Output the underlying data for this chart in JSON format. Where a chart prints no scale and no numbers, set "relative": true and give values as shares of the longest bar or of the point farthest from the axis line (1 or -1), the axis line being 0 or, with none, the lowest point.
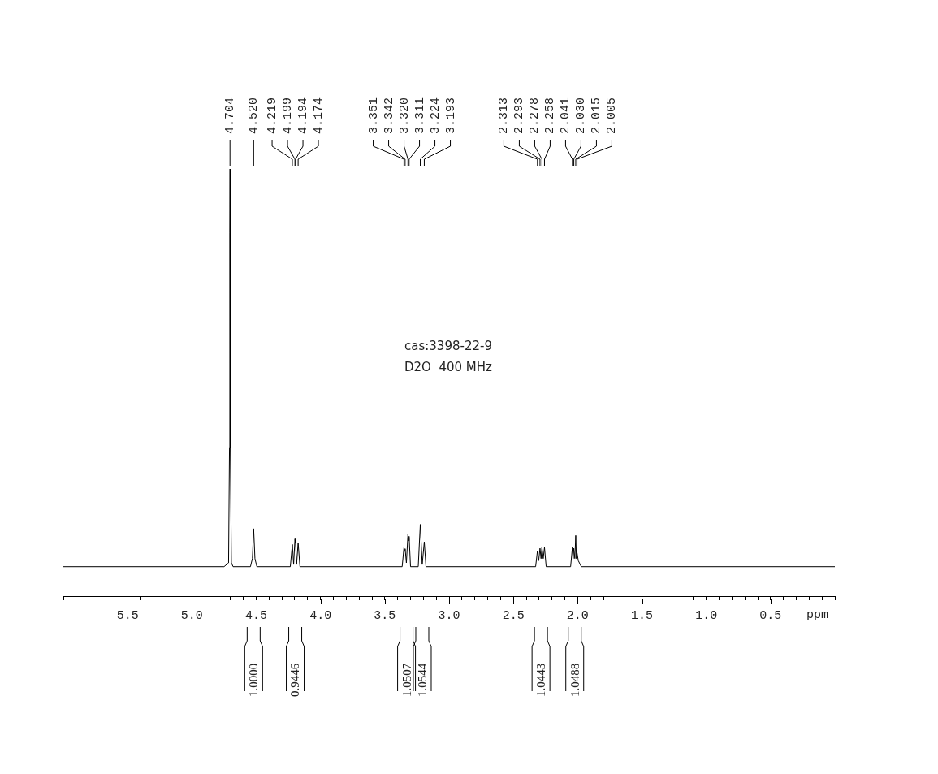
{
  "chart_data": {
    "type": "line",
    "relative": true,
    "marker": "none",
    "color": "#000000",
    "xlabel": "ppm",
    "xlim": [
      6,
      0
    ],
    "xticks": [
      {
        "value": 6,
        "label": null
      },
      {
        "value": 5.9,
        "label": null
      },
      {
        "value": 5.8,
        "label": null
      },
      {
        "value": 5.7,
        "label": null
      },
      {
        "value": 5.6,
        "label": null
      },
      5.5,
      {
        "value": 5.4,
        "label": null
      },
      {
        "value": 5.3,
        "label": null
      },
      {
        "value": 5.2,
        "label": null
      },
      {
        "value": 5.1,
        "label": null
      },
      {
        "value": 5,
        "label": "5.0"
      },
      {
        "value": 4.9,
        "label": null
      },
      {
        "value": 4.8,
        "label": null
      },
      {
        "value": 4.7,
        "label": null
      },
      {
        "value": 4.6,
        "label": null
      },
      4.5,
      {
        "value": 4.4,
        "label": null
      },
      {
        "value": 4.3,
        "label": null
      },
      {
        "value": 4.2,
        "label": null
      },
      {
        "value": 4.1,
        "label": null
      },
      {
        "value": 4,
        "label": "4.0"
      },
      {
        "value": 3.9,
        "label": null
      },
      {
        "value": 3.8,
        "label": null
      },
      {
        "value": 3.7,
        "label": null
      },
      {
        "value": 3.6,
        "label": null
      },
      3.5,
      {
        "value": 3.4,
        "label": null
      },
      {
        "value": 3.3,
        "label": null
      },
      {
        "value": 3.2,
        "label": null
      },
      {
        "value": 3.1,
        "label": null
      },
      {
        "value": 3,
        "label": "3.0"
      },
      {
        "value": 2.9,
        "label": null
      },
      {
        "value": 2.8,
        "label": null
      },
      {
        "value": 2.7,
        "label": null
      },
      {
        "value": 2.6,
        "label": null
      },
      2.5,
      {
        "value": 2.4,
        "label": null
      },
      {
        "value": 2.3,
        "label": null
      },
      {
        "value": 2.2,
        "label": null
      },
      {
        "value": 2.1,
        "label": null
      },
      {
        "value": 2,
        "label": "2.0"
      },
      {
        "value": 1.9,
        "label": null
      },
      {
        "value": 1.8,
        "label": null
      },
      {
        "value": 1.7,
        "label": null
      },
      {
        "value": 1.6,
        "label": null
      },
      1.5,
      {
        "value": 1.4,
        "label": null
      },
      {
        "value": 1.3,
        "label": null
      },
      {
        "value": 1.2,
        "label": null
      },
      {
        "value": 1.1,
        "label": null
      },
      {
        "value": 1,
        "label": "1.0"
      },
      {
        "value": 0.9,
        "label": null
      },
      {
        "value": 0.8,
        "label": null
      },
      {
        "value": 0.7,
        "label": null
      },
      {
        "value": 0.6,
        "label": null
      },
      0.5,
      {
        "value": 0.4,
        "label": null
      },
      {
        "value": 0.3,
        "label": null
      },
      {
        "value": 0.2,
        "label": null
      },
      {
        "value": 0.1,
        "label": null
      },
      {
        "value": 0,
        "label": null
      }
    ],
    "x": [
      6,
      4.75,
      4.715,
      4.708,
      4.7055,
      4.704,
      4.7025,
      4.7,
      4.693,
      4.68,
      4.545,
      4.53,
      4.52,
      4.51,
      4.495,
      4.235,
      4.219,
      4.209,
      4.199,
      4.1965,
      4.194,
      4.186,
      4.174,
      4.16,
      3.365,
      3.351,
      3.3465,
      3.342,
      3.332,
      3.32,
      3.3155,
      3.311,
      3.3,
      3.24,
      3.224,
      3.209,
      3.193,
      3.18,
      2.327,
      2.313,
      2.303,
      2.293,
      2.285,
      2.278,
      2.268,
      2.258,
      2.245,
      2.055,
      2.041,
      2.035,
      2.03,
      2.022,
      2.015,
      2.01,
      2.005,
      1.995,
      1.972,
      0
    ],
    "values": [
      0.069,
      0.069,
      0.078,
      0.348,
      0.85,
      1,
      0.85,
      0.348,
      0.078,
      0.069,
      0.069,
      0.088,
      0.158,
      0.088,
      0.069,
      0.069,
      0.121,
      0.074,
      0.134,
      0.125,
      0.13,
      0.074,
      0.125,
      0.069,
      0.069,
      0.114,
      0.105,
      0.111,
      0.078,
      0.145,
      0.13,
      0.14,
      0.069,
      0.069,
      0.168,
      0.074,
      0.127,
      0.069,
      0.069,
      0.106,
      0.083,
      0.112,
      0.088,
      0.115,
      0.088,
      0.114,
      0.069,
      0.069,
      0.114,
      0.088,
      0.112,
      0.088,
      0.142,
      0.088,
      0.102,
      0.083,
      0.069,
      0.069
    ],
    "annotations": [
      "4.704",
      "4.520",
      "4.219",
      "4.199",
      "4.194",
      "4.174",
      "3.351",
      "3.342",
      "3.320",
      "3.311",
      "3.224",
      "3.193",
      "2.313",
      "2.293",
      "2.278",
      "2.258",
      "2.041",
      "2.030",
      "2.015",
      "2.005",
      "1.0000",
      "0.9446",
      "1.0507",
      "1.0544",
      "1.0443",
      "1.0488",
      "cas:3398-22-9",
      "D2O  400 MHz"
    ]
  }
}
